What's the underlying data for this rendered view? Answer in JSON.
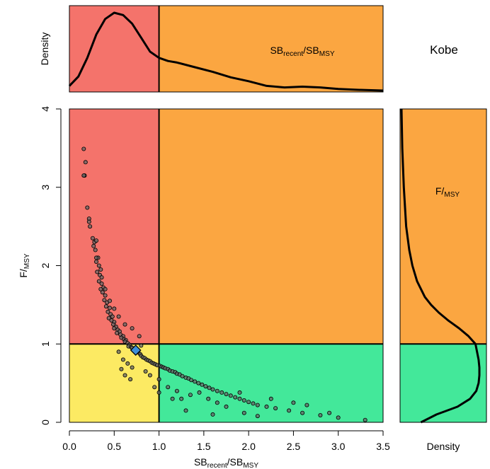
{
  "chart_data": {
    "type": "scatter",
    "title": "Kobe",
    "xlabel": {
      "base": "SB",
      "sub1": "recent",
      "slash": "/",
      "base2": "SB",
      "sub2": "MSY"
    },
    "ylabel": {
      "base": "F",
      "slash": "/",
      "sub": "MSY"
    },
    "xlim": [
      0,
      3.5
    ],
    "ylim": [
      0,
      4
    ],
    "x_ticks": [
      "0.0",
      "0.5",
      "1.0",
      "1.5",
      "2.0",
      "2.5",
      "3.0",
      "3.5"
    ],
    "y_ticks": [
      "0",
      "1",
      "2",
      "3",
      "4"
    ],
    "reference_lines": {
      "x": 1.0,
      "y": 1.0
    },
    "quadrant_colors": {
      "top_left": "#F4736B",
      "top_right": "#FBA641",
      "bottom_left": "#FCEA63",
      "bottom_right": "#43E89A"
    },
    "point_color": "#666666",
    "point_stroke": "#000000",
    "median_point": {
      "x": 0.74,
      "y": 0.92,
      "color": "#3D8FD9",
      "shape": "diamond"
    },
    "points": [
      [
        0.16,
        3.49
      ],
      [
        0.18,
        3.32
      ],
      [
        0.17,
        3.15
      ],
      [
        0.16,
        3.15
      ],
      [
        0.2,
        2.74
      ],
      [
        0.22,
        2.6
      ],
      [
        0.22,
        2.56
      ],
      [
        0.23,
        2.5
      ],
      [
        0.26,
        2.35
      ],
      [
        0.28,
        2.3
      ],
      [
        0.27,
        2.25
      ],
      [
        0.3,
        2.32
      ],
      [
        0.29,
        2.2
      ],
      [
        0.32,
        2.1
      ],
      [
        0.3,
        2.05
      ],
      [
        0.33,
        2.0
      ],
      [
        0.31,
        1.92
      ],
      [
        0.34,
        1.88
      ],
      [
        0.36,
        1.85
      ],
      [
        0.33,
        1.8
      ],
      [
        0.36,
        1.77
      ],
      [
        0.38,
        1.72
      ],
      [
        0.35,
        1.7
      ],
      [
        0.37,
        1.66
      ],
      [
        0.4,
        1.62
      ],
      [
        0.39,
        1.56
      ],
      [
        0.42,
        1.53
      ],
      [
        0.41,
        1.48
      ],
      [
        0.45,
        1.46
      ],
      [
        0.43,
        1.41
      ],
      [
        0.46,
        1.38
      ],
      [
        0.48,
        1.35
      ],
      [
        0.44,
        1.33
      ],
      [
        0.47,
        1.3
      ],
      [
        0.5,
        1.28
      ],
      [
        0.49,
        1.25
      ],
      [
        0.52,
        1.22
      ],
      [
        0.5,
        1.2
      ],
      [
        0.54,
        1.18
      ],
      [
        0.56,
        1.16
      ],
      [
        0.53,
        1.14
      ],
      [
        0.57,
        1.12
      ],
      [
        0.6,
        1.1
      ],
      [
        0.58,
        1.08
      ],
      [
        0.61,
        1.06
      ],
      [
        0.63,
        1.05
      ],
      [
        0.62,
        1.03
      ],
      [
        0.65,
        1.01
      ],
      [
        0.67,
        0.99
      ],
      [
        0.66,
        0.97
      ],
      [
        0.69,
        0.96
      ],
      [
        0.7,
        0.95
      ],
      [
        0.72,
        0.93
      ],
      [
        0.75,
        0.91
      ],
      [
        0.77,
        0.89
      ],
      [
        0.79,
        0.87
      ],
      [
        0.8,
        0.85
      ],
      [
        0.82,
        0.83
      ],
      [
        0.84,
        0.82
      ],
      [
        0.86,
        0.8
      ],
      [
        0.88,
        0.79
      ],
      [
        0.9,
        0.78
      ],
      [
        0.92,
        0.76
      ],
      [
        0.94,
        0.75
      ],
      [
        0.96,
        0.74
      ],
      [
        0.98,
        0.73
      ],
      [
        1.01,
        0.72
      ],
      [
        1.03,
        0.71
      ],
      [
        1.05,
        0.7
      ],
      [
        1.07,
        0.69
      ],
      [
        1.1,
        0.68
      ],
      [
        1.12,
        0.66
      ],
      [
        1.15,
        0.65
      ],
      [
        1.18,
        0.64
      ],
      [
        1.2,
        0.62
      ],
      [
        1.23,
        0.61
      ],
      [
        1.26,
        0.59
      ],
      [
        1.3,
        0.57
      ],
      [
        1.33,
        0.56
      ],
      [
        1.36,
        0.54
      ],
      [
        1.4,
        0.52
      ],
      [
        1.44,
        0.5
      ],
      [
        1.48,
        0.48
      ],
      [
        1.52,
        0.46
      ],
      [
        1.56,
        0.44
      ],
      [
        1.6,
        0.42
      ],
      [
        1.65,
        0.4
      ],
      [
        1.7,
        0.38
      ],
      [
        1.75,
        0.36
      ],
      [
        1.8,
        0.34
      ],
      [
        1.85,
        0.32
      ],
      [
        1.9,
        0.3
      ],
      [
        1.95,
        0.28
      ],
      [
        2.0,
        0.26
      ],
      [
        2.05,
        0.24
      ],
      [
        2.1,
        0.22
      ],
      [
        2.2,
        0.2
      ],
      [
        2.3,
        0.18
      ],
      [
        2.45,
        0.15
      ],
      [
        2.6,
        0.12
      ],
      [
        2.8,
        0.09
      ],
      [
        3.0,
        0.06
      ],
      [
        3.3,
        0.03
      ],
      [
        0.55,
        0.9
      ],
      [
        0.6,
        0.8
      ],
      [
        0.65,
        0.75
      ],
      [
        0.7,
        0.7
      ],
      [
        0.58,
        0.68
      ],
      [
        0.62,
        0.6
      ],
      [
        0.68,
        0.55
      ],
      [
        0.85,
        0.65
      ],
      [
        0.9,
        0.6
      ],
      [
        1.0,
        0.55
      ],
      [
        1.1,
        0.45
      ],
      [
        1.2,
        0.4
      ],
      [
        1.25,
        0.3
      ],
      [
        1.35,
        0.35
      ],
      [
        1.45,
        0.38
      ],
      [
        1.55,
        0.3
      ],
      [
        1.65,
        0.25
      ],
      [
        1.75,
        0.2
      ],
      [
        1.95,
        0.12
      ],
      [
        2.1,
        0.08
      ],
      [
        1.3,
        0.15
      ],
      [
        1.6,
        0.1
      ],
      [
        1.9,
        0.38
      ],
      [
        2.25,
        0.3
      ],
      [
        2.5,
        0.25
      ],
      [
        2.65,
        0.22
      ],
      [
        2.9,
        0.12
      ],
      [
        1.0,
        0.38
      ],
      [
        1.15,
        0.3
      ],
      [
        0.95,
        0.45
      ],
      [
        0.8,
        0.98
      ],
      [
        0.78,
        1.1
      ],
      [
        0.7,
        1.2
      ],
      [
        0.62,
        1.25
      ],
      [
        0.55,
        1.35
      ],
      [
        0.5,
        1.45
      ],
      [
        0.45,
        1.55
      ],
      [
        0.4,
        1.7
      ],
      [
        0.35,
        1.95
      ],
      [
        0.3,
        2.1
      ]
    ],
    "top_density": {
      "ylabel": "Density",
      "label": {
        "base": "SB",
        "sub1": "recent",
        "slash": "/",
        "base2": "SB",
        "sub2": "MSY"
      },
      "x": [
        0.0,
        0.1,
        0.2,
        0.3,
        0.4,
        0.5,
        0.6,
        0.7,
        0.8,
        0.9,
        1.0,
        1.1,
        1.2,
        1.4,
        1.6,
        1.8,
        2.0,
        2.2,
        2.4,
        2.6,
        2.8,
        3.0,
        3.2,
        3.5
      ],
      "y": [
        0.06,
        0.18,
        0.42,
        0.72,
        0.92,
        1.0,
        0.97,
        0.86,
        0.68,
        0.5,
        0.42,
        0.38,
        0.36,
        0.3,
        0.24,
        0.17,
        0.12,
        0.06,
        0.04,
        0.05,
        0.04,
        0.02,
        0.01,
        0.0
      ]
    },
    "right_density": {
      "xlabel": "Density",
      "label": {
        "base": "F",
        "slash": "/",
        "sub": "MSY"
      },
      "y": [
        0.0,
        0.1,
        0.2,
        0.3,
        0.4,
        0.5,
        0.6,
        0.7,
        0.8,
        0.9,
        1.0,
        1.1,
        1.2,
        1.3,
        1.4,
        1.5,
        1.6,
        1.8,
        2.0,
        2.2,
        2.5,
        3.0,
        3.5,
        4.0
      ],
      "d": [
        0.25,
        0.45,
        0.72,
        0.88,
        0.96,
        0.99,
        1.0,
        1.0,
        0.99,
        0.97,
        0.95,
        0.86,
        0.74,
        0.6,
        0.48,
        0.38,
        0.3,
        0.2,
        0.14,
        0.1,
        0.06,
        0.03,
        0.01,
        0.0
      ]
    }
  }
}
